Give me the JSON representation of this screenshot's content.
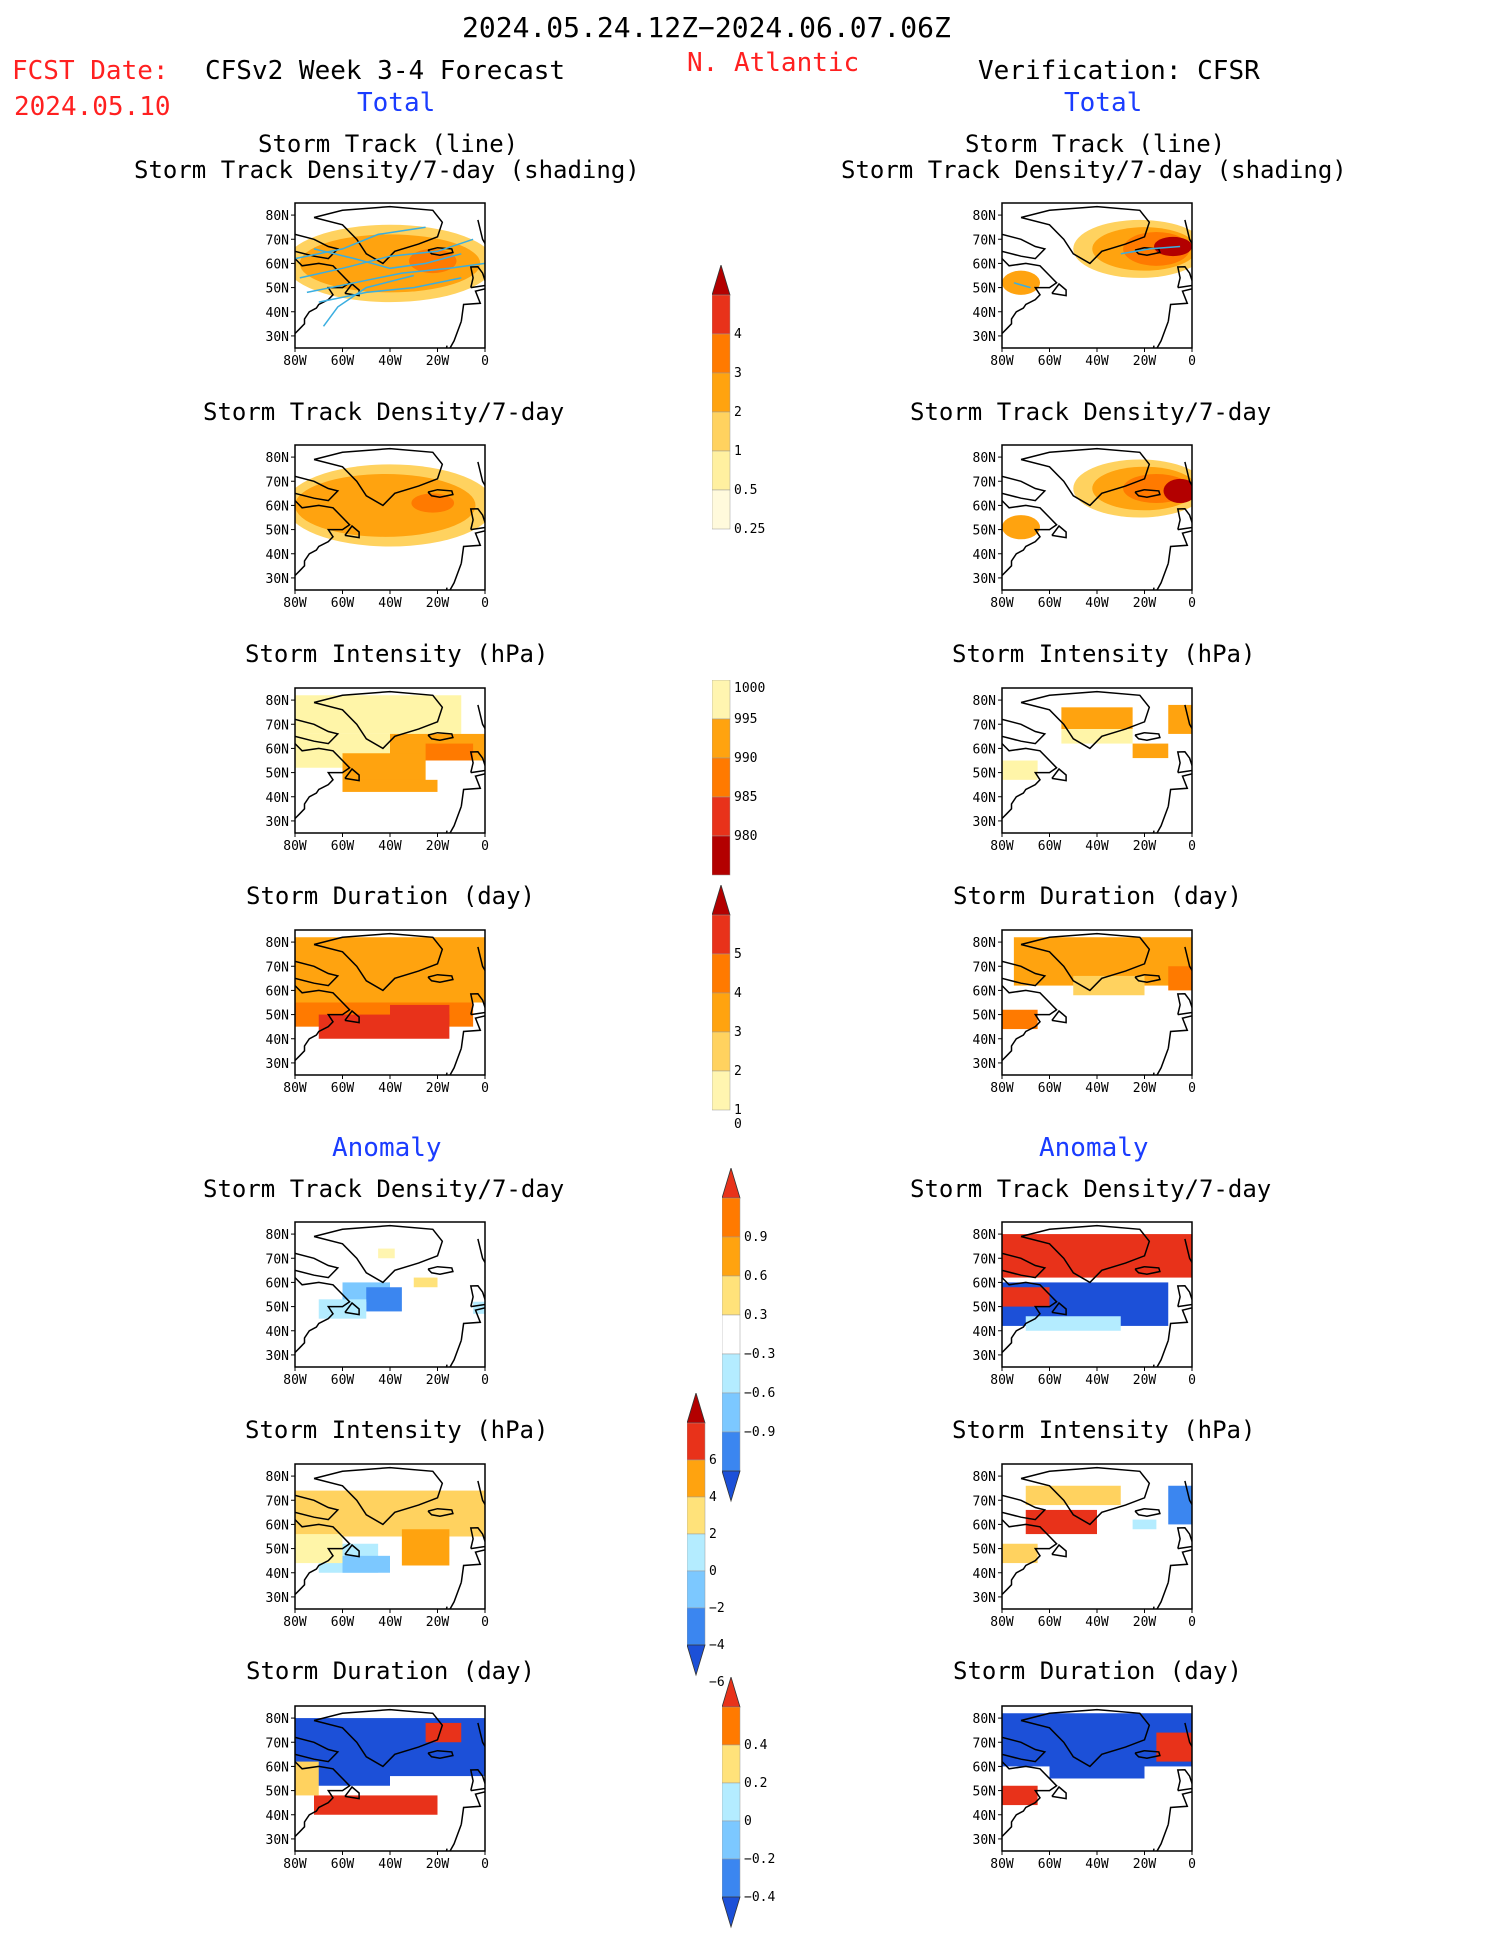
{
  "header": {
    "period": "2024.05.24.12Z−2024.06.07.06Z",
    "region": "N. Atlantic",
    "fcst_label": "FCST Date:",
    "fcst_date": "2024.05.10",
    "left_title": "CFSv2 Week 3-4 Forecast",
    "right_title": "Verification: CFSR",
    "left_section_total": "Total",
    "right_section_total": "Total",
    "left_section_anomaly": "Anomaly",
    "right_section_anomaly": "Anomaly"
  },
  "titles": {
    "track_line": "Storm Track (line)",
    "track_shading": "Storm Track Density/7-day (shading)",
    "density": "Storm Track Density/7-day",
    "intensity": "Storm Intensity (hPa)",
    "duration": "Storm Duration (day)"
  },
  "colors": {
    "c1": "#fff5a8",
    "c2": "#ffd25f",
    "c3": "#ffa30f",
    "c4": "#ff7a00",
    "c5": "#e8321a",
    "c6": "#b30000",
    "b1": "#b4ecff",
    "b2": "#7cc8ff",
    "b3": "#3b86f0",
    "b4": "#1c50d8",
    "track": "#3aaee0"
  },
  "chart_data": [
    {
      "type": "heatmap",
      "axes": {
        "x_ticks": [
          "80W",
          "60W",
          "40W",
          "20W",
          "0"
        ],
        "y_ticks": [
          "80N",
          "70N",
          "60N",
          "50N",
          "40N",
          "30N"
        ],
        "xlim": [
          -80,
          0
        ],
        "ylim": [
          25,
          85
        ]
      },
      "panels": [
        {
          "id": "fc_track",
          "title": "Storm Track (line) / Storm Track Density/7-day (shading)",
          "side": "forecast"
        },
        {
          "id": "fc_density",
          "title": "Storm Track Density/7-day",
          "side": "forecast"
        },
        {
          "id": "fc_intensity",
          "title": "Storm Intensity (hPa)",
          "side": "forecast"
        },
        {
          "id": "fc_duration",
          "title": "Storm Duration (day)",
          "side": "forecast"
        },
        {
          "id": "fc_density_anom",
          "title": "Storm Track Density/7-day",
          "side": "forecast",
          "section": "Anomaly"
        },
        {
          "id": "fc_intensity_anom",
          "title": "Storm Intensity (hPa)",
          "side": "forecast",
          "section": "Anomaly"
        },
        {
          "id": "fc_duration_anom",
          "title": "Storm Duration (day)",
          "side": "forecast",
          "section": "Anomaly"
        },
        {
          "id": "vf_track",
          "title": "Storm Track (line) / Storm Track Density/7-day (shading)",
          "side": "verification"
        },
        {
          "id": "vf_density",
          "title": "Storm Track Density/7-day",
          "side": "verification"
        },
        {
          "id": "vf_intensity",
          "title": "Storm Intensity (hPa)",
          "side": "verification"
        },
        {
          "id": "vf_duration",
          "title": "Storm Duration (day)",
          "side": "verification"
        },
        {
          "id": "vf_density_anom",
          "title": "Storm Track Density/7-day",
          "side": "verification",
          "section": "Anomaly"
        },
        {
          "id": "vf_intensity_anom",
          "title": "Storm Intensity (hPa)",
          "side": "verification",
          "section": "Anomaly"
        },
        {
          "id": "vf_duration_anom",
          "title": "Storm Duration (day)",
          "side": "verification",
          "section": "Anomaly"
        }
      ]
    },
    {
      "type": "colorbar",
      "name": "density_total",
      "labels": [
        "4",
        "3",
        "2",
        "1",
        "0.5",
        "0.25"
      ],
      "colors": [
        "#e8321a",
        "#ff7a00",
        "#ffa30f",
        "#ffd25f",
        "#fff0a0",
        "#fffadc"
      ],
      "arrow_top": "#b30000"
    },
    {
      "type": "colorbar",
      "name": "intensity_total",
      "labels": [
        "1000",
        "995",
        "990",
        "985",
        "980"
      ],
      "colors": [
        "#fff5b0",
        "#ffa30f",
        "#ff7a00",
        "#e8321a",
        "#b30000"
      ]
    },
    {
      "type": "colorbar",
      "name": "duration_total",
      "labels": [
        "5",
        "4",
        "3",
        "2",
        "1",
        "0"
      ],
      "colors": [
        "#e8321a",
        "#ff7a00",
        "#ffa30f",
        "#ffd25f",
        "#fff5b0"
      ],
      "arrow_top": "#b30000"
    },
    {
      "type": "colorbar",
      "name": "density_anomaly",
      "labels": [
        "0.9",
        "0.6",
        "0.3",
        "−0.3",
        "−0.6",
        "−0.9"
      ],
      "colors": [
        "#ff7a00",
        "#ffa30f",
        "#ffe27a",
        "#ffffff",
        "#b4ecff",
        "#7cc8ff",
        "#3b86f0"
      ],
      "arrow_top": "#e8321a",
      "arrow_bottom": "#1c50d8"
    },
    {
      "type": "colorbar",
      "name": "intensity_anomaly",
      "labels": [
        "6",
        "4",
        "2",
        "0",
        "−2",
        "−4",
        "−6"
      ],
      "colors": [
        "#e8321a",
        "#ffa30f",
        "#ffe27a",
        "#b4ecff",
        "#7cc8ff",
        "#3b86f0"
      ],
      "arrow_top": "#b30000",
      "arrow_bottom": "#1c50d8"
    },
    {
      "type": "colorbar",
      "name": "duration_anomaly",
      "labels": [
        "0.4",
        "0.2",
        "0",
        "−0.2",
        "−0.4"
      ],
      "colors": [
        "#ff7a00",
        "#ffe27a",
        "#b4ecff",
        "#7cc8ff",
        "#3b86f0"
      ],
      "arrow_top": "#e8321a",
      "arrow_bottom": "#1c50d8"
    }
  ]
}
